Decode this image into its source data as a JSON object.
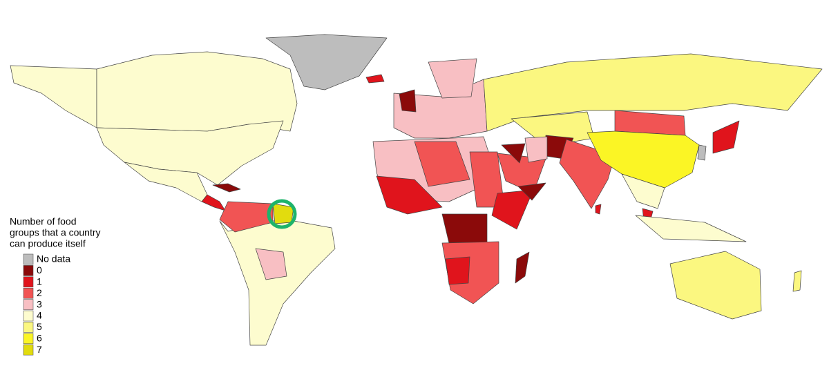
{
  "legend": {
    "title_lines": [
      "Number of food",
      "groups that a country",
      "can produce itself"
    ],
    "items": [
      {
        "label": "No data",
        "color": "#bdbdbd"
      },
      {
        "label": "0",
        "color": "#8b0a0a"
      },
      {
        "label": "1",
        "color": "#e0141c"
      },
      {
        "label": "2",
        "color": "#f15454"
      },
      {
        "label": "3",
        "color": "#f8bfc3"
      },
      {
        "label": "4",
        "color": "#fdfccf"
      },
      {
        "label": "5",
        "color": "#fbf780"
      },
      {
        "label": "6",
        "color": "#fbf525"
      },
      {
        "label": "7",
        "color": "#e2dc0e"
      }
    ]
  }
}
